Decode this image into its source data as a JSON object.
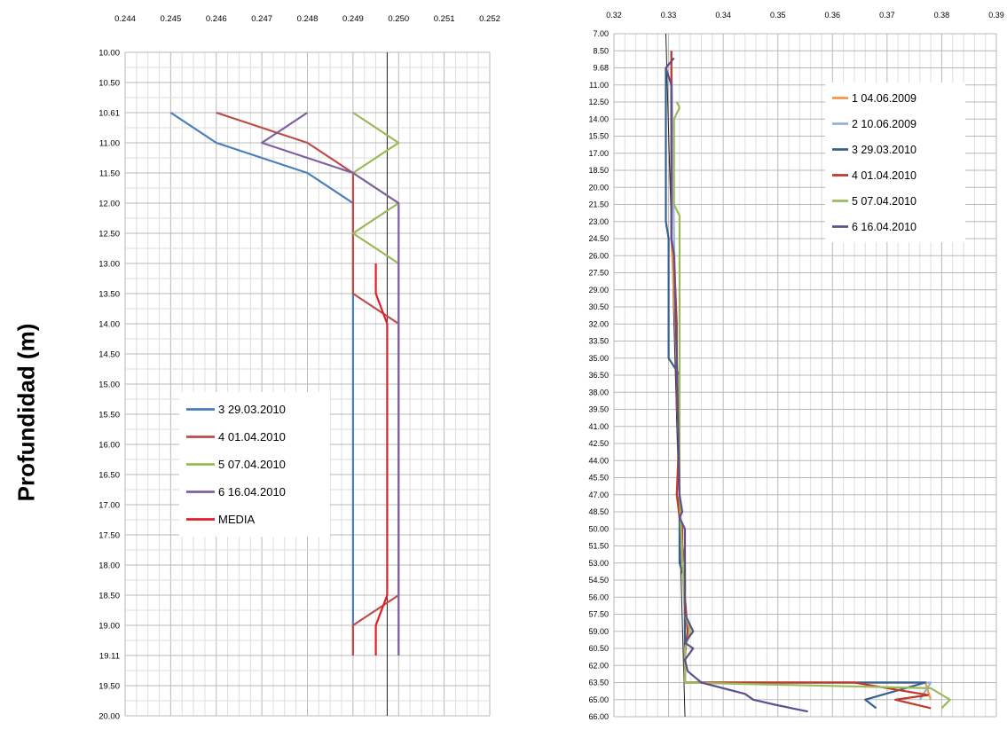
{
  "y_axis_label": "Profundidad (m)",
  "chart_data": [
    {
      "type": "line",
      "xlim": [
        0.244,
        0.252
      ],
      "x_ticks": [
        "0.244",
        "0.245",
        "0.246",
        "0.247",
        "0.248",
        "0.249",
        "0.250",
        "0.251",
        "0.252"
      ],
      "y_ticks": [
        "10.00",
        "10.50",
        "10.61",
        "11.00",
        "11.50",
        "12.00",
        "12.50",
        "13.00",
        "13.50",
        "14.00",
        "14.50",
        "15.00",
        "15.50",
        "16.00",
        "16.50",
        "17.00",
        "17.50",
        "18.00",
        "18.50",
        "19.00",
        "19.11",
        "19.50",
        "20.00"
      ],
      "y_inverted": true,
      "grid": true,
      "legend_position": "center-left",
      "series": [
        {
          "name": "3 29.03.2010",
          "color": "#4a7ebb",
          "points": [
            [
              0.245,
              "10.61"
            ],
            [
              0.246,
              "11.00"
            ],
            [
              0.248,
              "11.50"
            ],
            [
              0.249,
              "12.00"
            ],
            [
              0.249,
              "12.50"
            ],
            [
              0.249,
              "13.00"
            ],
            [
              0.249,
              "13.50"
            ],
            [
              0.249,
              "19.00"
            ],
            [
              0.249,
              "19.11"
            ]
          ]
        },
        {
          "name": "4 01.04.2010",
          "color": "#be4b48",
          "points": [
            [
              0.246,
              "10.61"
            ],
            [
              0.248,
              "11.00"
            ],
            [
              0.249,
              "11.50"
            ],
            [
              0.249,
              "12.00"
            ],
            [
              0.249,
              "12.50"
            ],
            [
              0.249,
              "13.00"
            ],
            [
              0.249,
              "13.50"
            ],
            [
              0.25,
              "14.00"
            ],
            [
              0.25,
              "18.50"
            ],
            [
              0.249,
              "19.00"
            ],
            [
              0.249,
              "19.11"
            ]
          ]
        },
        {
          "name": "5 07.04.2010",
          "color": "#98b954",
          "points": [
            [
              0.249,
              "10.61"
            ],
            [
              0.25,
              "11.00"
            ],
            [
              0.249,
              "11.50"
            ],
            [
              0.25,
              "12.00"
            ],
            [
              0.249,
              "12.50"
            ],
            [
              0.25,
              "13.00"
            ],
            [
              0.25,
              "14.00"
            ],
            [
              0.25,
              "18.50"
            ],
            [
              0.25,
              "19.11"
            ]
          ]
        },
        {
          "name": "6 16.04.2010",
          "color": "#7d60a0",
          "points": [
            [
              0.248,
              "10.61"
            ],
            [
              0.247,
              "11.00"
            ],
            [
              0.248,
              "11.25"
            ],
            [
              0.249,
              "11.50"
            ],
            [
              0.25,
              "12.00"
            ],
            [
              0.25,
              "13.00"
            ],
            [
              0.25,
              "19.11"
            ]
          ]
        },
        {
          "name": "MEDIA",
          "color": "#e31e24",
          "points": [
            [
              0.2495,
              "13.00"
            ],
            [
              0.2495,
              "13.50"
            ],
            [
              0.24975,
              "14.00"
            ],
            [
              0.24975,
              "18.50"
            ],
            [
              0.2495,
              "19.00"
            ],
            [
              0.2495,
              "19.11"
            ]
          ]
        }
      ],
      "reference_line": {
        "x": 0.24975,
        "from": "10.00",
        "to": "20.00",
        "color": "#222222"
      }
    },
    {
      "type": "line",
      "xlim": [
        0.32,
        0.39
      ],
      "x_ticks": [
        "0.32",
        "0.33",
        "0.34",
        "0.35",
        "0.36",
        "0.37",
        "0.38",
        "0.39"
      ],
      "y_ticks": [
        "7.00",
        "8.50",
        "9.68",
        "11.00",
        "12.50",
        "14.00",
        "15.50",
        "17.00",
        "18.50",
        "20.00",
        "21.50",
        "23.00",
        "24.50",
        "26.00",
        "27.50",
        "29.00",
        "30.50",
        "32.00",
        "33.50",
        "35.00",
        "36.50",
        "38.00",
        "39.50",
        "41.00",
        "42.50",
        "44.00",
        "45.50",
        "47.00",
        "48.50",
        "50.00",
        "51.50",
        "53.00",
        "54.50",
        "56.00",
        "57.50",
        "59.00",
        "60.50",
        "62.00",
        "63.50",
        "65.00",
        "66.00"
      ],
      "y_inverted": true,
      "grid": true,
      "legend_position": "top-right",
      "series": [
        {
          "name": "1  04.06.2009",
          "color": "#f79646",
          "points": [
            [
              0.3305,
              "8.50"
            ],
            [
              0.3305,
              "24.50"
            ],
            [
              0.3315,
              "35.00"
            ],
            [
              0.332,
              "47.00"
            ],
            [
              0.333,
              "57.50"
            ],
            [
              0.333,
              "63.50"
            ],
            [
              0.377,
              "63.50"
            ],
            [
              0.378,
              "65.00"
            ]
          ]
        },
        {
          "name": "2 10.06.2009",
          "color": "#95b3d7",
          "points": [
            [
              0.3305,
              "8.50"
            ],
            [
              0.331,
              "24.50"
            ],
            [
              0.3315,
              "35.00"
            ],
            [
              0.332,
              "47.00"
            ],
            [
              0.333,
              "57.50"
            ],
            [
              0.333,
              "63.50"
            ],
            [
              0.378,
              "63.50"
            ],
            [
              0.376,
              "65.00"
            ]
          ]
        },
        {
          "name": "3 29.03.2010",
          "color": "#376092",
          "points": [
            [
              0.3295,
              "9.68"
            ],
            [
              0.3295,
              "23.00"
            ],
            [
              0.33,
              "24.50"
            ],
            [
              0.33,
              "35.00"
            ],
            [
              0.332,
              "36.50"
            ],
            [
              0.332,
              "53.00"
            ],
            [
              0.333,
              "54.50"
            ],
            [
              0.333,
              "63.50"
            ],
            [
              0.377,
              "63.50"
            ],
            [
              0.366,
              "65.00"
            ],
            [
              0.368,
              "65.50"
            ]
          ]
        },
        {
          "name": "4 01.04.2010",
          "color": "#c0392b",
          "points": [
            [
              0.3305,
              "8.50"
            ],
            [
              0.3305,
              "12.50"
            ],
            [
              0.3305,
              "24.50"
            ],
            [
              0.331,
              "26.00"
            ],
            [
              0.3315,
              "32.00"
            ],
            [
              0.3315,
              "39.50"
            ],
            [
              0.332,
              "41.00"
            ],
            [
              0.3315,
              "47.00"
            ],
            [
              0.332,
              "49.00"
            ],
            [
              0.3325,
              "50.00"
            ],
            [
              0.3325,
              "51.50"
            ],
            [
              0.333,
              "53.00"
            ],
            [
              0.333,
              "56.00"
            ],
            [
              0.3335,
              "59.00"
            ],
            [
              0.333,
              "61.00"
            ],
            [
              0.333,
              "63.50"
            ],
            [
              0.364,
              "63.50"
            ],
            [
              0.3775,
              "64.60"
            ],
            [
              0.3715,
              "65.00"
            ],
            [
              0.378,
              "65.50"
            ]
          ]
        },
        {
          "name": "5 07.04.2010",
          "color": "#9bbb59",
          "points": [
            [
              0.3315,
              "12.50"
            ],
            [
              0.332,
              "13.00"
            ],
            [
              0.331,
              "14.00"
            ],
            [
              0.331,
              "21.50"
            ],
            [
              0.332,
              "22.50"
            ],
            [
              0.332,
              "35.00"
            ],
            [
              0.332,
              "47.00"
            ],
            [
              0.333,
              "57.50"
            ],
            [
              0.334,
              "59.00"
            ],
            [
              0.333,
              "60.50"
            ],
            [
              0.333,
              "63.50"
            ],
            [
              0.378,
              "64.00"
            ],
            [
              0.3815,
              "65.00"
            ],
            [
              0.38,
              "65.50"
            ]
          ]
        },
        {
          "name": "6 16.04.2010",
          "color": "#5f4f8c",
          "points": [
            [
              0.331,
              "9.00"
            ],
            [
              0.3295,
              "9.68"
            ],
            [
              0.3305,
              "11.00"
            ],
            [
              0.3305,
              "24.50"
            ],
            [
              0.331,
              "26.00"
            ],
            [
              0.3315,
              "35.00"
            ],
            [
              0.332,
              "47.00"
            ],
            [
              0.3325,
              "48.50"
            ],
            [
              0.332,
              "49.00"
            ],
            [
              0.333,
              "50.00"
            ],
            [
              0.333,
              "57.50"
            ],
            [
              0.3345,
              "59.00"
            ],
            [
              0.333,
              "60.00"
            ],
            [
              0.3345,
              "60.50"
            ],
            [
              0.333,
              "61.50"
            ],
            [
              0.3335,
              "62.50"
            ],
            [
              0.336,
              "63.50"
            ],
            [
              0.344,
              "64.50"
            ],
            [
              0.3455,
              "65.00"
            ],
            [
              0.3495,
              "65.30"
            ],
            [
              0.3555,
              "65.70"
            ]
          ]
        }
      ],
      "reference_line": {
        "x": [
          0.3295,
          0.333
        ],
        "from": "7.00",
        "to": "66.00",
        "color": "#222222"
      }
    }
  ]
}
